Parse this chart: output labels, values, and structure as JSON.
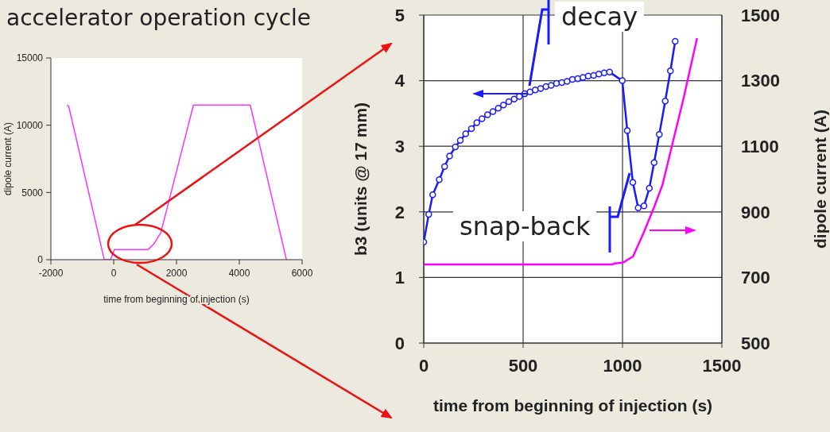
{
  "chart_data": [
    {
      "type": "line",
      "title": "accelerator operation cycle",
      "xlabel": "time from beginning of injection (s)",
      "ylabel": "dipole current (A)",
      "marker": "none",
      "color": "#ff33ff",
      "x": [
        -1490,
        -1430,
        -300,
        -100,
        25,
        1100,
        1290,
        1500,
        2540,
        4350,
        5500
      ],
      "values": [
        11500,
        11400,
        0,
        0,
        760,
        760,
        1200,
        2000,
        11500,
        11500,
        0
      ],
      "xlim": [
        -2000,
        6000
      ],
      "xticks": [
        -2000,
        0,
        2000,
        4000,
        6000
      ],
      "ylim": [
        0,
        15000
      ],
      "yticks": [
        0,
        5000,
        10000,
        15000
      ]
    },
    {
      "type": "line",
      "xlabel": "time from beginning of injection (s)",
      "ylabel": "b3 (units @ 17 mm)",
      "y2label": "dipole current (A)",
      "grid": true,
      "annotations": [
        "decay",
        {
          "text": "snap-back",
          "x": 1052,
          "y": 2.45
        }
      ],
      "series": [
        {
          "color": "#1a1aff",
          "marker": "circle",
          "x": [
            0,
            25,
            45,
            78,
            105,
            130,
            159,
            184,
            211,
            240,
            267,
            293,
            321,
            348,
            375,
            401,
            428,
            455,
            481,
            508,
            535,
            561,
            588,
            615,
            641,
            668,
            695,
            721,
            748,
            775,
            801,
            828,
            855,
            881,
            908,
            935,
            999,
            1024,
            1052,
            1079,
            1108,
            1135,
            1159,
            1185,
            1215,
            1241,
            1265
          ],
          "values": [
            1.54,
            1.96,
            2.26,
            2.49,
            2.69,
            2.85,
            2.99,
            3.09,
            3.19,
            3.27,
            3.36,
            3.42,
            3.48,
            3.53,
            3.58,
            3.63,
            3.68,
            3.72,
            3.76,
            3.8,
            3.83,
            3.86,
            3.88,
            3.91,
            3.93,
            3.96,
            3.97,
            3.99,
            4.02,
            4.03,
            4.05,
            4.07,
            4.08,
            4.1,
            4.12,
            4.13,
            4.0,
            3.24,
            2.45,
            2.06,
            2.09,
            2.36,
            2.75,
            3.18,
            3.69,
            4.15,
            4.6
          ]
        },
        {
          "color": "#ff00ff",
          "marker": "none",
          "axis": "y2",
          "x": [
            0,
            950,
            960,
            1001,
            1053,
            1107,
            1160,
            1201,
            1255,
            1308,
            1375
          ],
          "values": [
            740,
            740,
            743,
            745,
            764,
            837,
            916,
            982,
            1117,
            1248,
            1430
          ]
        }
      ],
      "xlim": [
        0,
        1500
      ],
      "xticks": [
        0,
        500,
        1000,
        1500
      ],
      "ylim": [
        0,
        5
      ],
      "yticks": [
        0,
        1,
        2,
        3,
        4,
        5
      ],
      "y2lim": [
        500,
        1500
      ],
      "y2ticks": [
        500,
        700,
        900,
        1100,
        1300,
        1500
      ]
    }
  ]
}
